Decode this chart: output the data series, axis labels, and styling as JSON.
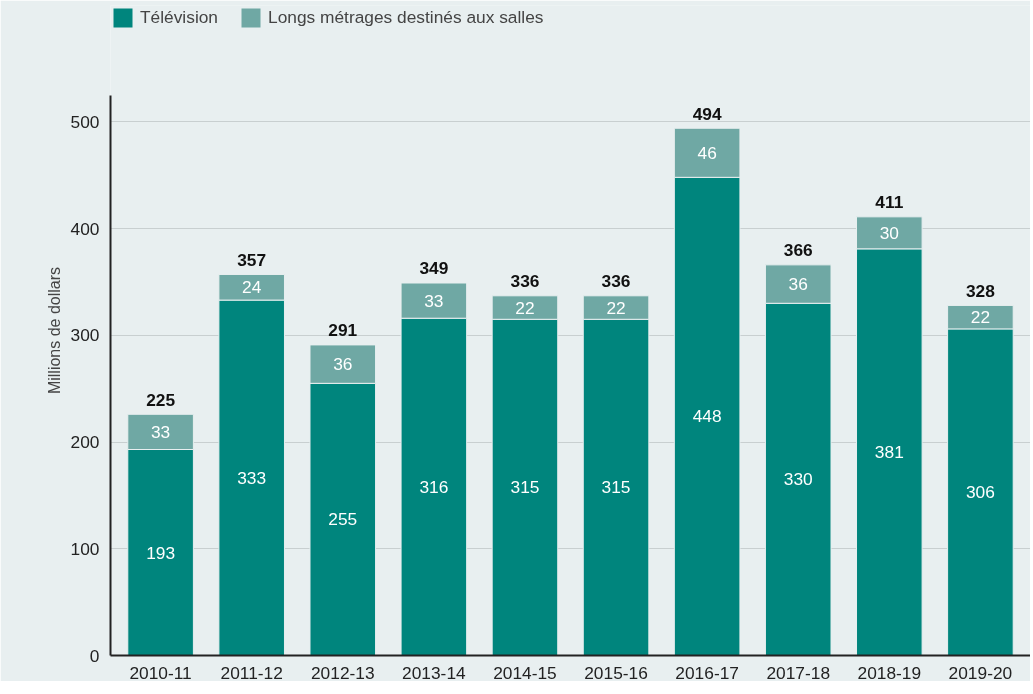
{
  "chart_data": {
    "type": "bar",
    "stacked": true,
    "ylabel": "Millions de dollars",
    "categories": [
      "2010-11",
      "2011-12",
      "2012-13",
      "2013-14",
      "2014-15",
      "2015-16",
      "2016-17",
      "2017-18",
      "2018-19",
      "2019-20"
    ],
    "series": [
      {
        "name": "Télévision",
        "color": "#00857d",
        "values": [
          193,
          333,
          255,
          316,
          315,
          315,
          448,
          330,
          381,
          306
        ]
      },
      {
        "name": "Longs métrages destinés aux salles",
        "color": "#6fa8a4",
        "values": [
          33,
          24,
          36,
          33,
          22,
          22,
          46,
          36,
          30,
          22
        ]
      }
    ],
    "totals": [
      "225",
      "357",
      "291",
      "349",
      "336",
      "336",
      "494",
      "366",
      "411",
      "328"
    ],
    "data_labels": true,
    "ylim": [
      0,
      525
    ],
    "yticks": [
      0,
      100,
      200,
      300,
      400,
      500
    ],
    "grid": "y",
    "legend": "top left"
  }
}
